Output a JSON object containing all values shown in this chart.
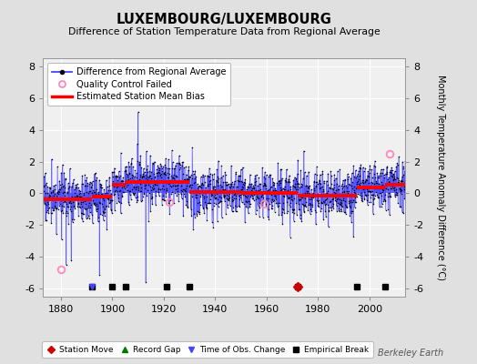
{
  "title": "LUXEMBOURG/LUXEMBOURG",
  "subtitle": "Difference of Station Temperature Data from Regional Average",
  "ylabel": "Monthly Temperature Anomaly Difference (°C)",
  "xlabel_ticks": [
    1880,
    1900,
    1920,
    1940,
    1960,
    1980,
    2000
  ],
  "ylim": [
    -6.5,
    8.5
  ],
  "xlim": [
    1873,
    2014
  ],
  "yticks": [
    -6,
    -4,
    -2,
    0,
    2,
    4,
    6,
    8
  ],
  "bg_color": "#e0e0e0",
  "plot_bg_color": "#f0f0f0",
  "line_color": "#4444ff",
  "marker_color": "#000000",
  "bias_color": "#ff0000",
  "watermark": "Berkeley Earth",
  "segment_biases": [
    {
      "x_start": 1873,
      "x_end": 1892,
      "bias": -0.35
    },
    {
      "x_start": 1892,
      "x_end": 1900,
      "bias": -0.2
    },
    {
      "x_start": 1900,
      "x_end": 1905,
      "bias": 0.55
    },
    {
      "x_start": 1905,
      "x_end": 1921,
      "bias": 0.7
    },
    {
      "x_start": 1921,
      "x_end": 1930,
      "bias": 0.7
    },
    {
      "x_start": 1930,
      "x_end": 1950,
      "bias": 0.1
    },
    {
      "x_start": 1950,
      "x_end": 1972,
      "bias": 0.0
    },
    {
      "x_start": 1972,
      "x_end": 1995,
      "bias": -0.15
    },
    {
      "x_start": 1995,
      "x_end": 2006,
      "bias": 0.35
    },
    {
      "x_start": 2006,
      "x_end": 2014,
      "bias": 0.55
    }
  ],
  "empirical_breaks": [
    1892,
    1900,
    1905,
    1921,
    1930,
    1972,
    1995,
    2006
  ],
  "station_moves": [
    1972
  ],
  "obs_changes": [
    1892
  ],
  "qc_failed_xy": [
    [
      1880,
      -4.8
    ],
    [
      1922,
      -0.55
    ],
    [
      1959,
      -0.65
    ],
    [
      2008,
      2.5
    ]
  ],
  "record_gaps": [],
  "noise_std": 0.75,
  "random_seed": 17,
  "spike_times": [
    1910,
    1913,
    1882,
    1895,
    1884
  ],
  "spike_vals": [
    5.1,
    -5.6,
    -4.5,
    -5.1,
    -4.2
  ]
}
